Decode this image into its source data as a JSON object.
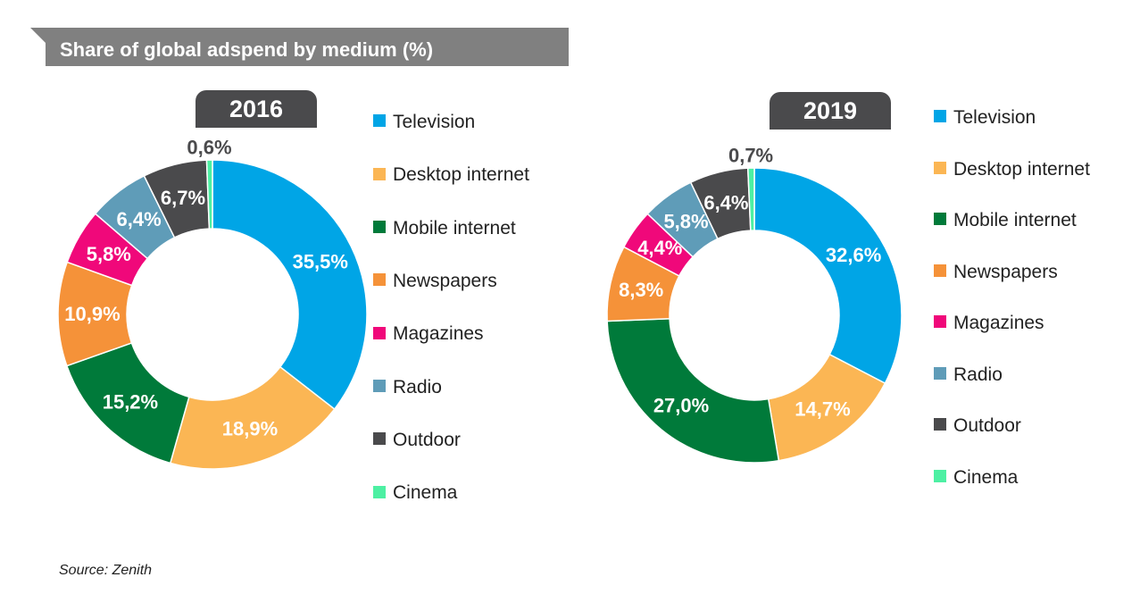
{
  "title": "Share of global adspend by medium (%)",
  "source": "Source: Zenith",
  "colors": {
    "Television": "#00a5e6",
    "Desktop internet": "#fbb654",
    "Mobile internet": "#007a3a",
    "Newspapers": "#f59239",
    "Magazines": "#f0087a",
    "Radio": "#5f9cb8",
    "Outdoor": "#4a4a4c",
    "Cinema": "#4df0a3",
    "banner": "#808080",
    "tab": "#4a4a4c"
  },
  "chart_data": [
    {
      "type": "pie",
      "variant": "donut",
      "title": "2016",
      "categories": [
        "Television",
        "Desktop internet",
        "Mobile internet",
        "Newspapers",
        "Magazines",
        "Radio",
        "Outdoor",
        "Cinema"
      ],
      "values": [
        35.5,
        18.9,
        15.2,
        10.9,
        5.8,
        6.4,
        6.7,
        0.6
      ],
      "labels": [
        "35,5%",
        "18,9%",
        "15,2%",
        "10,9%",
        "5,8%",
        "6,4%",
        "6,7%",
        "0,6%"
      ],
      "legend": [
        "Television",
        "Desktop internet",
        "Mobile internet",
        "Newspapers",
        "Magazines",
        "Radio",
        "Outdoor",
        "Cinema"
      ]
    },
    {
      "type": "pie",
      "variant": "donut",
      "title": "2019",
      "categories": [
        "Television",
        "Desktop internet",
        "Mobile internet",
        "Newspapers",
        "Magazines",
        "Radio",
        "Outdoor",
        "Cinema"
      ],
      "values": [
        32.6,
        14.7,
        27.0,
        8.3,
        4.4,
        5.8,
        6.4,
        0.7
      ],
      "labels": [
        "32,6%",
        "14,7%",
        "27,0%",
        "8,3%",
        "4,4%",
        "5,8%",
        "6,4%",
        "0,7%"
      ],
      "legend": [
        "Television",
        "Desktop internet",
        "Mobile internet",
        "Newspapers",
        "Magazines",
        "Radio",
        "Outdoor",
        "Cinema"
      ]
    }
  ]
}
